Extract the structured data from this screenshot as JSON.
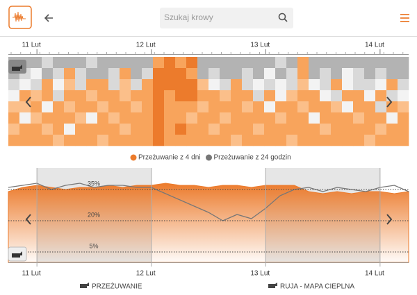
{
  "header": {
    "search_placeholder": "Szukaj krowy"
  },
  "heatmap": {
    "xlim": [
      10.75,
      14.25
    ],
    "xticks": [
      {
        "value": 11,
        "label": "11 Lut"
      },
      {
        "value": 12,
        "label": "12 Lut"
      },
      {
        "value": 13,
        "label": "13 Lut"
      },
      {
        "value": 14,
        "label": "14 Lut"
      }
    ],
    "palette": [
      "#b3b3b3",
      "#d9d9d9",
      "#f3f3f3",
      "#fbbf8a",
      "#f8a45c",
      "#ec7b2c"
    ],
    "cells": [
      [
        0,
        0,
        0,
        1,
        0,
        0,
        0,
        1,
        0,
        0,
        0,
        0,
        0,
        4,
        5,
        4,
        5,
        0,
        0,
        0,
        0,
        0,
        0,
        0,
        1,
        0,
        4,
        0,
        0,
        0,
        0,
        0,
        0,
        0,
        0,
        0
      ],
      [
        0,
        1,
        2,
        0,
        1,
        4,
        1,
        0,
        0,
        1,
        4,
        0,
        1,
        5,
        5,
        5,
        4,
        0,
        1,
        0,
        0,
        1,
        0,
        2,
        0,
        1,
        4,
        0,
        1,
        0,
        2,
        1,
        0,
        1,
        0,
        0
      ],
      [
        1,
        2,
        1,
        4,
        2,
        3,
        1,
        4,
        4,
        1,
        3,
        1,
        4,
        5,
        5,
        5,
        5,
        3,
        2,
        1,
        4,
        1,
        2,
        1,
        2,
        1,
        3,
        2,
        1,
        4,
        2,
        1,
        1,
        2,
        4,
        1
      ],
      [
        2,
        4,
        3,
        4,
        1,
        4,
        4,
        3,
        4,
        4,
        3,
        4,
        4,
        5,
        4,
        5,
        5,
        4,
        4,
        3,
        4,
        4,
        1,
        4,
        2,
        3,
        4,
        4,
        2,
        1,
        4,
        4,
        2,
        4,
        1,
        2
      ],
      [
        3,
        3,
        4,
        2,
        4,
        3,
        4,
        4,
        3,
        4,
        4,
        3,
        4,
        5,
        4,
        4,
        4,
        3,
        4,
        4,
        4,
        3,
        4,
        2,
        4,
        4,
        3,
        4,
        4,
        3,
        2,
        4,
        4,
        1,
        4,
        3
      ],
      [
        4,
        2,
        3,
        4,
        4,
        4,
        3,
        2,
        4,
        3,
        4,
        4,
        4,
        5,
        4,
        4,
        3,
        4,
        4,
        3,
        4,
        4,
        4,
        4,
        3,
        4,
        4,
        2,
        4,
        4,
        4,
        3,
        4,
        4,
        2,
        4
      ],
      [
        3,
        4,
        4,
        3,
        4,
        2,
        4,
        4,
        4,
        4,
        3,
        4,
        4,
        5,
        4,
        5,
        4,
        4,
        3,
        4,
        4,
        4,
        3,
        4,
        4,
        4,
        4,
        4,
        3,
        4,
        4,
        4,
        4,
        3,
        4,
        4
      ],
      [
        4,
        4,
        4,
        4,
        3,
        4,
        4,
        4,
        3,
        4,
        4,
        4,
        4,
        5,
        4,
        4,
        4,
        4,
        4,
        4,
        3,
        4,
        4,
        4,
        4,
        3,
        4,
        4,
        4,
        4,
        4,
        4,
        3,
        4,
        4,
        4
      ]
    ]
  },
  "chart_data": {
    "type": "area",
    "x": [
      10.75,
      10.875,
      11,
      11.125,
      11.25,
      11.375,
      11.5,
      11.625,
      11.75,
      11.875,
      12,
      12.125,
      12.25,
      12.375,
      12.5,
      12.625,
      12.75,
      12.875,
      13,
      13.125,
      13.25,
      13.375,
      13.5,
      13.625,
      13.75,
      13.875,
      14,
      14.125,
      14.25
    ],
    "series": [
      {
        "name": "Przeżuwanie z 4 dni",
        "color": "#ec7b2c",
        "style": "area",
        "values": [
          34,
          36,
          37,
          36,
          35,
          36,
          36,
          37,
          36,
          37,
          37,
          38,
          37,
          37,
          36,
          37,
          37,
          36,
          37,
          37,
          37,
          34,
          33,
          34,
          33,
          34,
          34,
          33,
          34
        ]
      },
      {
        "name": "Przeżuwanie z 24 godzin",
        "color": "#777777",
        "style": "line",
        "values": [
          36,
          37,
          38,
          35,
          37,
          38,
          36,
          37,
          37,
          36,
          36,
          33,
          30,
          27,
          24,
          20,
          23,
          21,
          26,
          32,
          35,
          36,
          34,
          36,
          35,
          34,
          36,
          37,
          34
        ]
      }
    ],
    "xlim": [
      10.75,
      14.25
    ],
    "xticks": [
      {
        "value": 11,
        "label": "11 Lut"
      },
      {
        "value": 12,
        "label": "12 Lut"
      },
      {
        "value": 13,
        "label": "13 Lut"
      },
      {
        "value": 14,
        "label": "14 Lut"
      }
    ],
    "ylim": [
      0,
      40
    ],
    "yticks": [
      {
        "value": 5,
        "label": "5%"
      },
      {
        "value": 20,
        "label": "20%"
      },
      {
        "value": 35,
        "label": "35%"
      }
    ],
    "grid": true
  },
  "tabs": [
    "PRZEŻUWANIE",
    "RUJA - MAPA CIEPLNA"
  ]
}
